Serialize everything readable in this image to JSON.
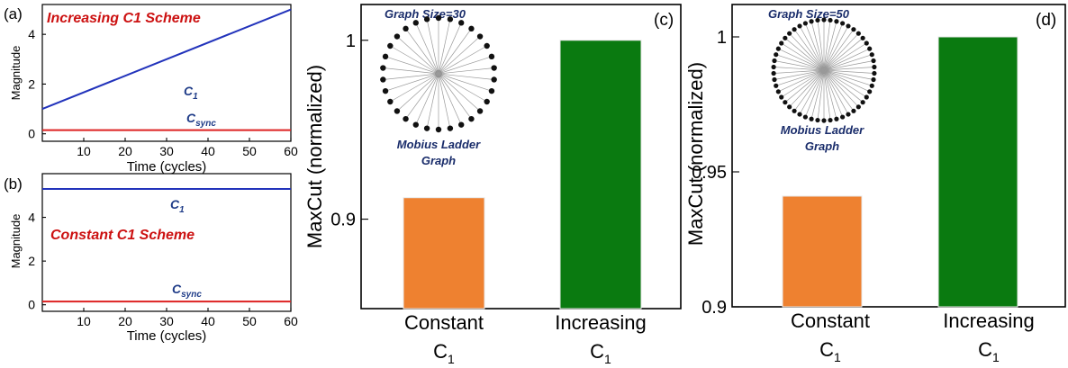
{
  "colors": {
    "c1_line": "#2233bb",
    "csync_line": "#dd2222",
    "scheme_text": "#cc1111",
    "inset_text": "#1a2d6b",
    "bar_constant": "#ee8130",
    "bar_increasing": "#0a7a10"
  },
  "chart_data": [
    {
      "panel": "(a)",
      "type": "line",
      "annotation": "Increasing C1 Scheme",
      "xlabel": "Time (cycles)",
      "ylabel": "Magnitude",
      "xlim": [
        0,
        60
      ],
      "ylim": [
        -0.3,
        5.2
      ],
      "xticks": [
        10,
        20,
        30,
        40,
        50,
        60
      ],
      "yticks": [
        0,
        2,
        4
      ],
      "series": [
        {
          "name": "C",
          "subscript": "1",
          "x": [
            0,
            60
          ],
          "y": [
            1.0,
            5.0
          ]
        },
        {
          "name": "C",
          "subscript": "sync",
          "x": [
            0,
            60
          ],
          "y": [
            0.15,
            0.15
          ]
        }
      ]
    },
    {
      "panel": "(b)",
      "type": "line",
      "annotation": "Constant C1 Scheme",
      "xlabel": "Time (cycles)",
      "ylabel": "Magnitude",
      "xlim": [
        0,
        60
      ],
      "ylim": [
        -0.3,
        6.0
      ],
      "xticks": [
        10,
        20,
        30,
        40,
        50,
        60
      ],
      "yticks": [
        0,
        2,
        4
      ],
      "series": [
        {
          "name": "C",
          "subscript": "1",
          "x": [
            0,
            60
          ],
          "y": [
            5.3,
            5.3
          ]
        },
        {
          "name": "C",
          "subscript": "sync",
          "x": [
            0,
            60
          ],
          "y": [
            0.15,
            0.15
          ]
        }
      ]
    },
    {
      "panel": "(c)",
      "type": "bar",
      "ylabel": "MaxCut (normalized)",
      "ylim": [
        0.85,
        1.02
      ],
      "yticks": [
        0.9,
        1
      ],
      "ytick_labels": [
        "0.9",
        "1"
      ],
      "categories": [
        {
          "main": "Constant",
          "sub_base": "C",
          "sub_index": "1"
        },
        {
          "main": "Increasing",
          "sub_base": "C",
          "sub_index": "1"
        }
      ],
      "values": [
        0.912,
        1.0
      ],
      "inset": {
        "title": "Graph Size=30",
        "caption_line1": "Mobius Ladder",
        "caption_line2": "Graph",
        "nodes": 30
      }
    },
    {
      "panel": "(d)",
      "type": "bar",
      "ylabel": "MaxCut (normalized)",
      "ylim": [
        0.9,
        1.012
      ],
      "yticks": [
        0.9,
        0.95,
        1
      ],
      "ytick_labels": [
        "0.9",
        "0.95",
        "1"
      ],
      "categories": [
        {
          "main": "Constant",
          "sub_base": "C",
          "sub_index": "1"
        },
        {
          "main": "Increasing",
          "sub_base": "C",
          "sub_index": "1"
        }
      ],
      "values": [
        0.941,
        1.0
      ],
      "inset": {
        "title": "Graph Size=50",
        "caption_line1": "Mobius Ladder",
        "caption_line2": "Graph",
        "nodes": 50
      }
    }
  ]
}
